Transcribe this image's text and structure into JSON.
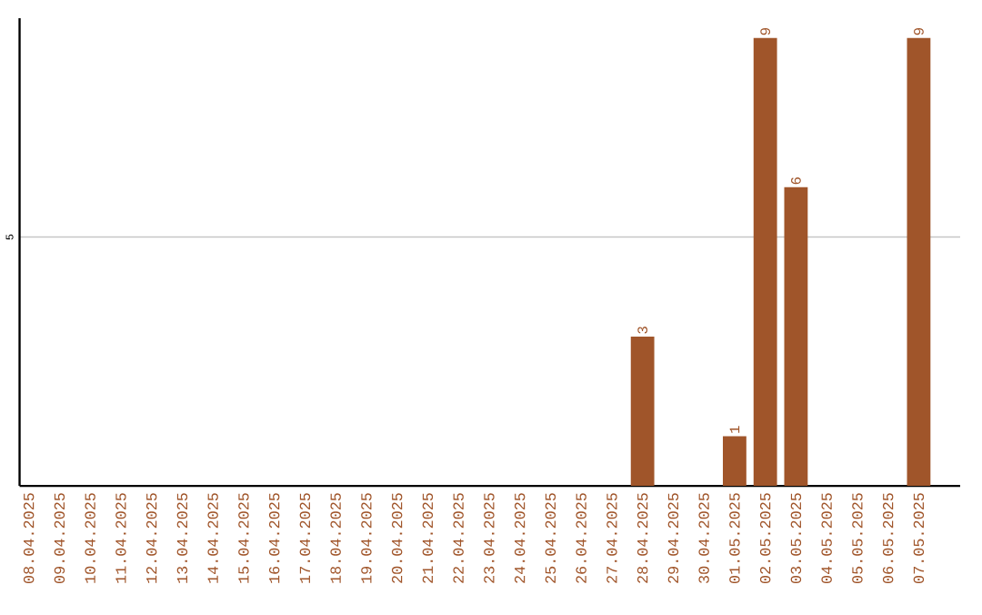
{
  "chart_data": {
    "type": "bar",
    "categories": [
      "08.04.2025",
      "09.04.2025",
      "10.04.2025",
      "11.04.2025",
      "12.04.2025",
      "13.04.2025",
      "14.04.2025",
      "15.04.2025",
      "16.04.2025",
      "17.04.2025",
      "18.04.2025",
      "19.04.2025",
      "20.04.2025",
      "21.04.2025",
      "22.04.2025",
      "23.04.2025",
      "24.04.2025",
      "25.04.2025",
      "26.04.2025",
      "27.04.2025",
      "28.04.2025",
      "29.04.2025",
      "30.04.2025",
      "01.05.2025",
      "02.05.2025",
      "03.05.2025",
      "04.05.2025",
      "05.05.2025",
      "06.05.2025",
      "07.05.2025"
    ],
    "values": [
      null,
      null,
      null,
      null,
      null,
      null,
      null,
      null,
      null,
      null,
      null,
      null,
      null,
      null,
      null,
      null,
      null,
      null,
      null,
      null,
      3,
      null,
      null,
      1,
      9,
      6,
      null,
      null,
      null,
      9
    ],
    "data_labels": true,
    "color": "#a0552a",
    "ylim": [
      0,
      9.4
    ],
    "yticks": [
      5
    ],
    "grid": "y"
  }
}
